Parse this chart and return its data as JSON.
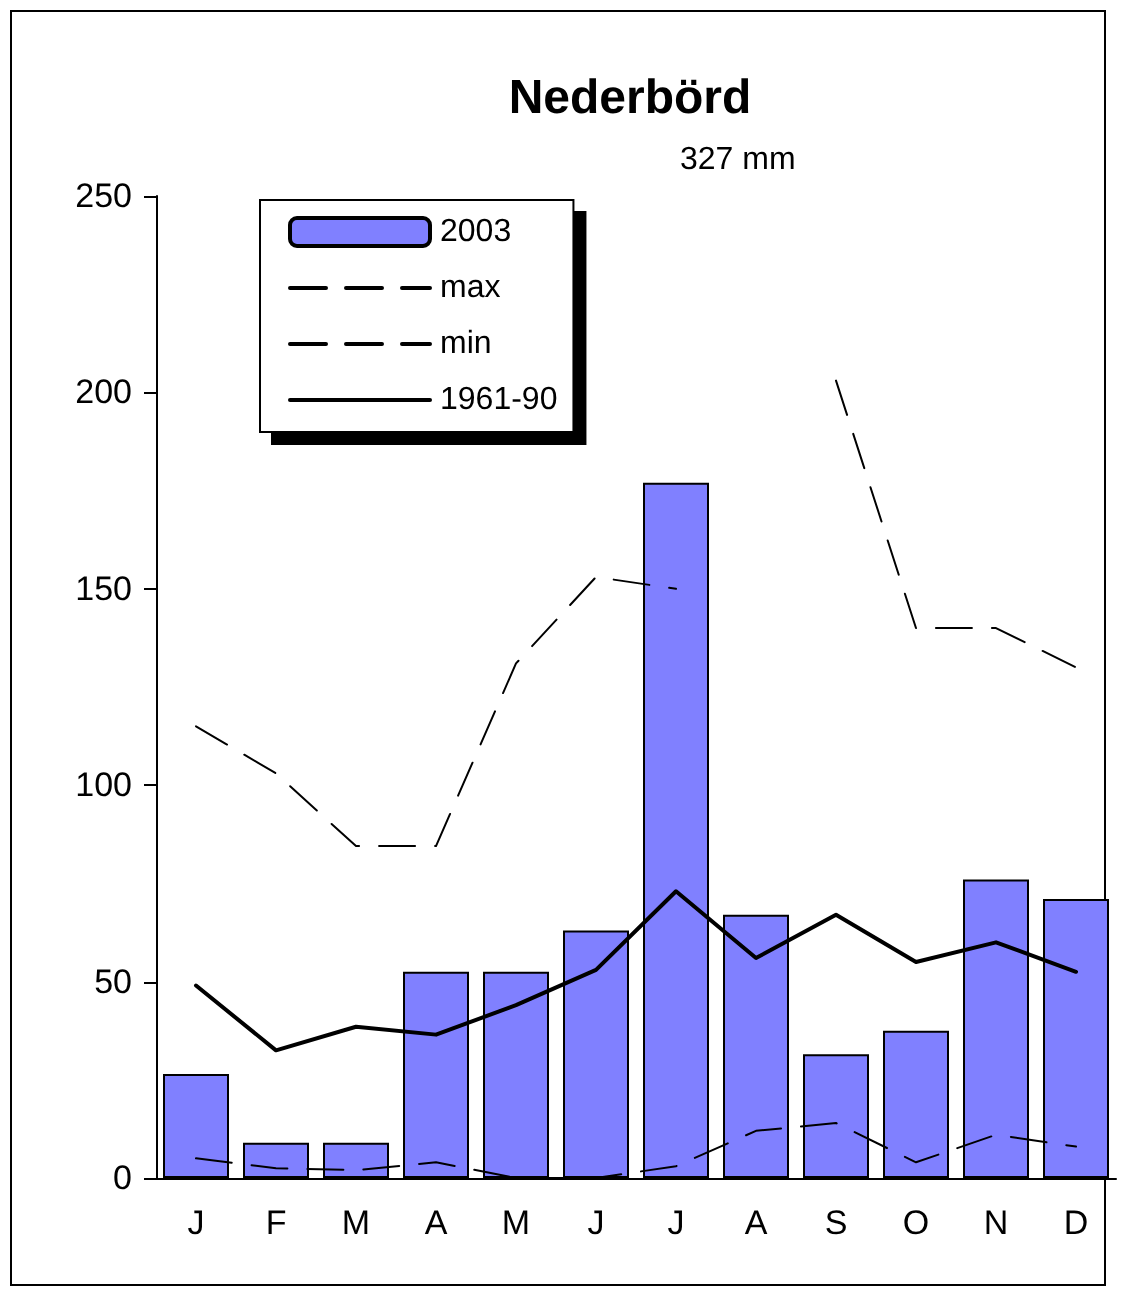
{
  "chart_data": {
    "type": "bar",
    "title": "Nederbörd",
    "categories": [
      "J",
      "F",
      "M",
      "A",
      "M",
      "J",
      "J",
      "A",
      "S",
      "O",
      "N",
      "D"
    ],
    "series": [
      {
        "name": "2003",
        "color": "#8080ff",
        "values": [
          26.5,
          9,
          9,
          52.5,
          52.5,
          63,
          177,
          67,
          31.5,
          37.5,
          76,
          71
        ]
      },
      {
        "name": "max",
        "type": "line",
        "color": "#000000",
        "line_style": "dashed",
        "values": [
          115,
          103,
          84.5,
          84.5,
          131,
          153,
          150,
          null,
          203,
          140,
          140,
          130
        ]
      },
      {
        "name": "min",
        "type": "line",
        "color": "#000000",
        "line_style": "dashed",
        "values": [
          5,
          2.5,
          2,
          4,
          0,
          0,
          3,
          12,
          14,
          4,
          11,
          8
        ]
      },
      {
        "name": "1961-90",
        "type": "line",
        "color": "#000000",
        "line_style": "solid",
        "values": [
          49,
          32.5,
          38.5,
          36.5,
          44,
          53,
          73,
          56,
          67,
          55,
          60,
          52.5
        ]
      }
    ],
    "ylim": [
      0,
      250
    ],
    "yticks": [
      0,
      50,
      100,
      150,
      200,
      250
    ],
    "annotations": [
      "327 mm"
    ],
    "grid": false,
    "legend": "top left",
    "marker": "none"
  }
}
